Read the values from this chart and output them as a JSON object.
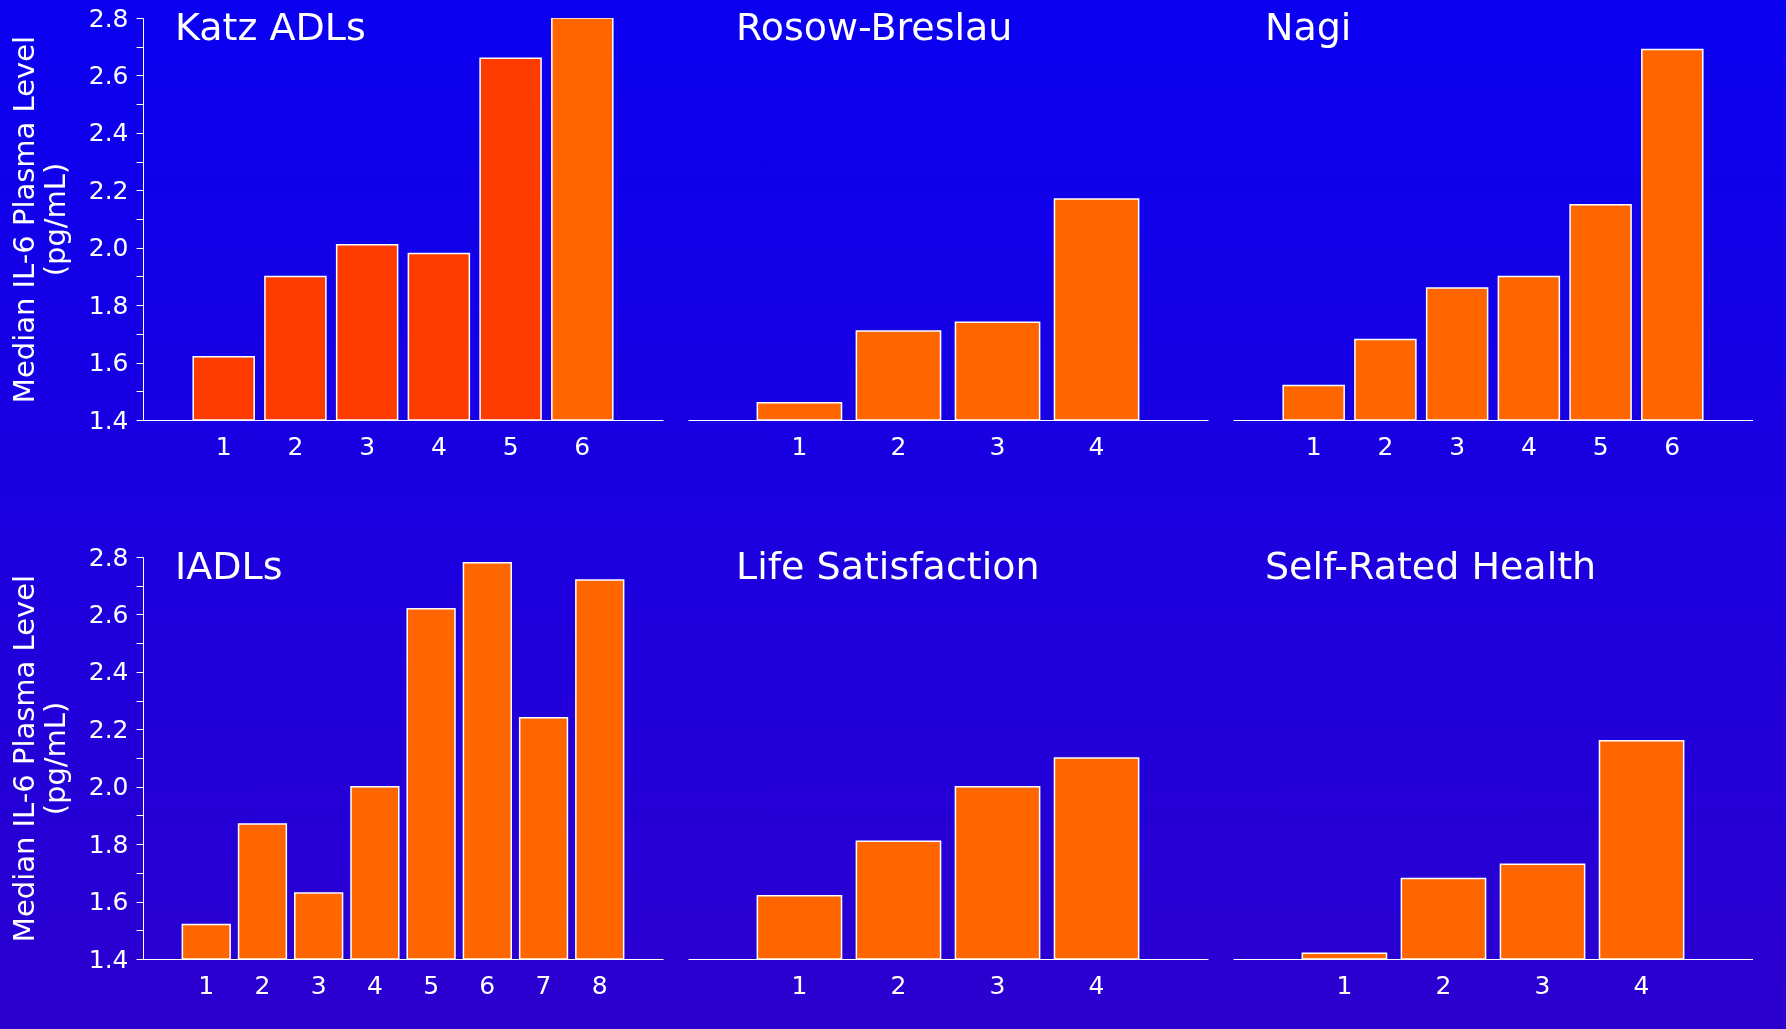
{
  "chart_data": [
    {
      "type": "bar",
      "title": "Katz ADLs",
      "ylabel": "Median IL-6 Plasma Level\n(pg/mL)",
      "categories": [
        "1",
        "2",
        "3",
        "4",
        "5",
        "6"
      ],
      "values": [
        1.62,
        1.9,
        2.01,
        1.98,
        2.66,
        2.8
      ],
      "colors": [
        "#ff3c00",
        "#ff3c00",
        "#ff3c00",
        "#ff3c00",
        "#ff3c00",
        "#ff6600"
      ],
      "ylim": [
        1.4,
        2.8
      ],
      "yticks": [
        1.4,
        {
          "value": 1.5,
          "label": null
        },
        1.6,
        {
          "value": 1.7,
          "label": null
        },
        1.8,
        {
          "value": 1.9,
          "label": null
        },
        {
          "value": 2,
          "label": "2.0"
        },
        {
          "value": 2.1,
          "label": null
        },
        2.2,
        {
          "value": 2.3,
          "label": null
        },
        2.4,
        {
          "value": 2.5,
          "label": null
        },
        2.6,
        {
          "value": 2.7,
          "label": null
        },
        2.8
      ]
    },
    {
      "type": "bar",
      "title": "Rosow-Breslau",
      "categories": [
        "1",
        "2",
        "3",
        "4"
      ],
      "values": [
        1.46,
        1.71,
        1.74,
        2.17
      ],
      "colors": [
        "#ff6600",
        "#ff6600",
        "#ff6600",
        "#ff6600"
      ],
      "ylim": [
        1.4,
        2.8
      ],
      "tick_labels": "x"
    },
    {
      "type": "bar",
      "title": "Nagi",
      "categories": [
        "1",
        "2",
        "3",
        "4",
        "5",
        "6"
      ],
      "values": [
        1.52,
        1.68,
        1.86,
        1.9,
        2.15,
        2.69
      ],
      "colors": [
        "#ff6600",
        "#ff6600",
        "#ff6600",
        "#ff6600",
        "#ff6600",
        "#ff6600"
      ],
      "ylim": [
        1.4,
        2.8
      ],
      "tick_labels": "x"
    },
    {
      "type": "bar",
      "title": "IADLs",
      "ylabel": "Median IL-6 Plasma Level\n(pg/mL)",
      "categories": [
        "1",
        "2",
        "3",
        "4",
        "5",
        "6",
        "7",
        "8"
      ],
      "values": [
        1.52,
        1.87,
        1.63,
        2.0,
        2.62,
        2.78,
        2.24,
        2.72
      ],
      "colors": [
        "#ff6600",
        "#ff6600",
        "#ff6600",
        "#ff6600",
        "#ff6600",
        "#ff6600",
        "#ff6600",
        "#ff6600"
      ],
      "ylim": [
        1.4,
        2.8
      ],
      "yticks": [
        1.4,
        {
          "value": 1.5,
          "label": null
        },
        1.6,
        {
          "value": 1.7,
          "label": null
        },
        1.8,
        {
          "value": 1.9,
          "label": null
        },
        {
          "value": 2,
          "label": "2.0"
        },
        {
          "value": 2.1,
          "label": null
        },
        2.2,
        {
          "value": 2.3,
          "label": null
        },
        2.4,
        {
          "value": 2.5,
          "label": null
        },
        2.6,
        {
          "value": 2.7,
          "label": null
        },
        2.8
      ]
    },
    {
      "type": "bar",
      "title": "Life Satisfaction",
      "categories": [
        "1",
        "2",
        "3",
        "4"
      ],
      "values": [
        1.62,
        1.81,
        2.0,
        2.1
      ],
      "colors": [
        "#ff6600",
        "#ff6600",
        "#ff6600",
        "#ff6600"
      ],
      "ylim": [
        1.4,
        2.8
      ],
      "tick_labels": "x"
    },
    {
      "type": "bar",
      "title": "Self-Rated Health",
      "categories": [
        "1",
        "2",
        "3",
        "4"
      ],
      "values": [
        1.42,
        1.68,
        1.73,
        2.16
      ],
      "colors": [
        "#ff6600",
        "#ff6600",
        "#ff6600",
        "#ff6600"
      ],
      "ylim": [
        1.4,
        2.8
      ],
      "tick_labels": "x"
    }
  ]
}
